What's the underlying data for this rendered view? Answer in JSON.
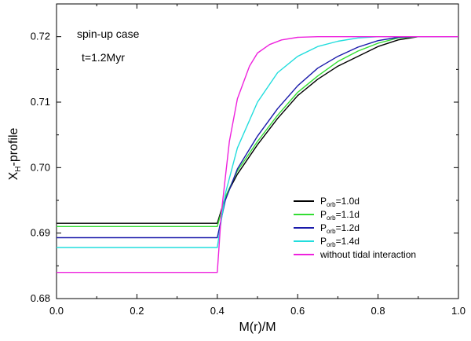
{
  "chart_data": {
    "type": "line",
    "xlabel": "M(r)/M",
    "ylabel_main": "X",
    "ylabel_sub": "H",
    "ylabel_suffix": "-profile",
    "xlim": [
      0.0,
      1.0
    ],
    "ylim": [
      0.68,
      0.725
    ],
    "xticks": [
      "0.0",
      "0.2",
      "0.4",
      "0.6",
      "0.8",
      "1.0"
    ],
    "xtick_values": [
      0.0,
      0.2,
      0.4,
      0.6,
      0.8,
      1.0
    ],
    "yticks": [
      "0.68",
      "0.69",
      "0.70",
      "0.71",
      "0.72"
    ],
    "ytick_values": [
      0.68,
      0.69,
      0.7,
      0.71,
      0.72
    ],
    "annotations": {
      "case": "spin-up case",
      "time": "t=1.2Myr"
    },
    "legend_position": "bottom-right",
    "series": [
      {
        "name": "P_orb=1.0d",
        "legend_main": "P",
        "legend_sub": "orb",
        "legend_suffix": "=1.0d",
        "color": "#000000",
        "x": [
          0.0,
          0.4,
          0.42,
          0.45,
          0.5,
          0.55,
          0.6,
          0.65,
          0.7,
          0.75,
          0.8,
          0.85,
          0.9,
          1.0
        ],
        "y": [
          0.6915,
          0.6915,
          0.6955,
          0.699,
          0.7035,
          0.7075,
          0.711,
          0.7135,
          0.7155,
          0.717,
          0.7185,
          0.7195,
          0.72,
          0.72
        ]
      },
      {
        "name": "P_orb=1.1d",
        "legend_main": "P",
        "legend_sub": "orb",
        "legend_suffix": "=1.1d",
        "color": "#33dd33",
        "x": [
          0.0,
          0.4,
          0.42,
          0.45,
          0.5,
          0.55,
          0.6,
          0.65,
          0.7,
          0.75,
          0.8,
          0.85,
          0.9,
          1.0
        ],
        "y": [
          0.691,
          0.691,
          0.6955,
          0.6995,
          0.704,
          0.708,
          0.7115,
          0.714,
          0.7162,
          0.7178,
          0.719,
          0.7198,
          0.72,
          0.72
        ]
      },
      {
        "name": "P_orb=1.2d",
        "legend_main": "P",
        "legend_sub": "orb",
        "legend_suffix": "=1.2d",
        "color": "#1a1aaa",
        "x": [
          0.0,
          0.4,
          0.42,
          0.45,
          0.5,
          0.55,
          0.6,
          0.65,
          0.7,
          0.75,
          0.8,
          0.85,
          0.9,
          1.0
        ],
        "y": [
          0.6893,
          0.6893,
          0.695,
          0.6998,
          0.7048,
          0.709,
          0.7125,
          0.7152,
          0.717,
          0.7184,
          0.7194,
          0.7199,
          0.72,
          0.72
        ]
      },
      {
        "name": "P_orb=1.4d",
        "legend_main": "P",
        "legend_sub": "orb",
        "legend_suffix": "=1.4d",
        "color": "#22dddd",
        "x": [
          0.0,
          0.4,
          0.42,
          0.45,
          0.5,
          0.55,
          0.6,
          0.65,
          0.7,
          0.75,
          0.8,
          0.85,
          1.0
        ],
        "y": [
          0.6878,
          0.6878,
          0.696,
          0.703,
          0.71,
          0.7145,
          0.717,
          0.7185,
          0.7193,
          0.7198,
          0.72,
          0.72,
          0.72
        ]
      },
      {
        "name": "without tidal interaction",
        "legend_main": "without tidal interaction",
        "legend_sub": "",
        "legend_suffix": "",
        "color": "#ee22dd",
        "x": [
          0.0,
          0.4,
          0.41,
          0.43,
          0.45,
          0.48,
          0.5,
          0.53,
          0.56,
          0.6,
          0.65,
          0.7,
          1.0
        ],
        "y": [
          0.684,
          0.684,
          0.693,
          0.704,
          0.7105,
          0.7155,
          0.7175,
          0.7188,
          0.7195,
          0.7199,
          0.72,
          0.72,
          0.72
        ]
      }
    ]
  }
}
